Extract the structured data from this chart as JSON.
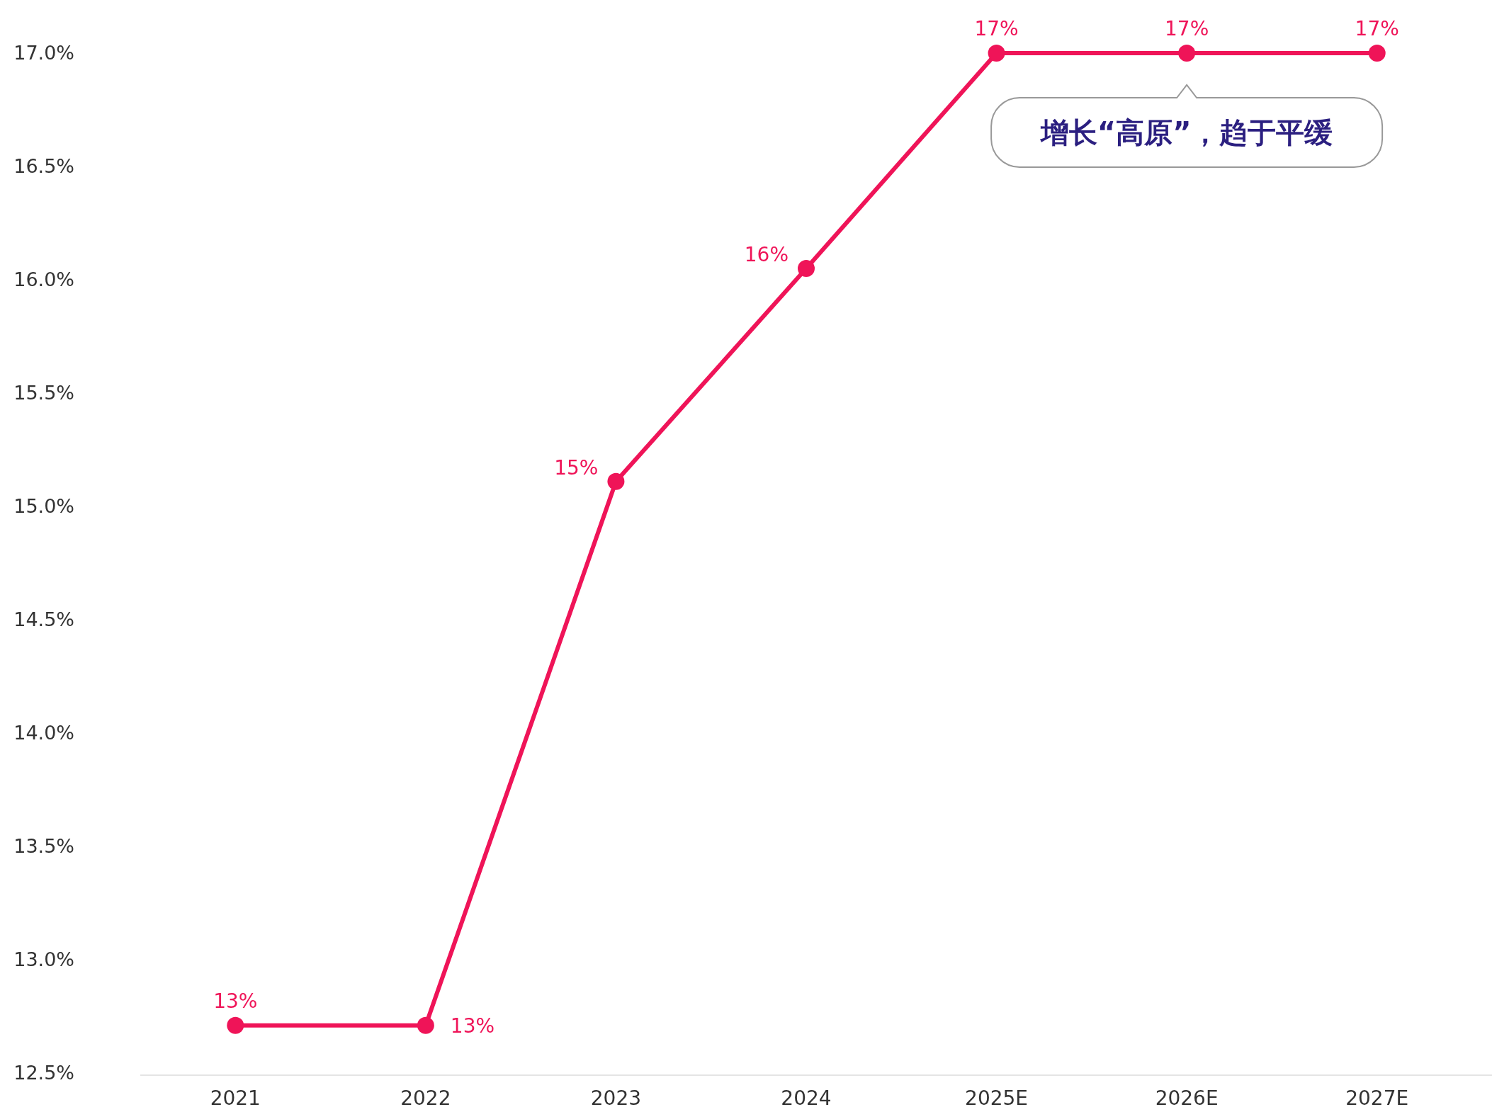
{
  "chart_data": {
    "type": "line",
    "categories": [
      "2021",
      "2022",
      "2023",
      "2024",
      "2025E",
      "2026E",
      "2027E"
    ],
    "series": [
      {
        "color": "#ef1458",
        "values": [
          12.71,
          12.71,
          15.11,
          16.05,
          17.0,
          17.0,
          17.0
        ],
        "value_labels": [
          "13%",
          "13%",
          "15%",
          "16%",
          "17%",
          "17%",
          "17%"
        ]
      }
    ],
    "ylim": [
      12.5,
      17.0
    ],
    "yticks": [
      {
        "value": 12.5,
        "label": "12.5%"
      },
      {
        "value": 13.0,
        "label": "13.0%"
      },
      {
        "value": 13.5,
        "label": "13.5%"
      },
      {
        "value": 14.0,
        "label": "14.0%"
      },
      {
        "value": 14.5,
        "label": "14.5%"
      },
      {
        "value": 15.0,
        "label": "15.0%"
      },
      {
        "value": 15.5,
        "label": "15.5%"
      },
      {
        "value": 16.0,
        "label": "16.0%"
      },
      {
        "value": 16.5,
        "label": "16.5%"
      },
      {
        "value": 17.0,
        "label": "17.0%"
      }
    ],
    "marker": "circle",
    "line_style": "solid",
    "grid": false,
    "annotations": [
      {
        "text": "增长“高原”，趋于平缓",
        "x": "2026E",
        "y": 17.0
      }
    ]
  }
}
